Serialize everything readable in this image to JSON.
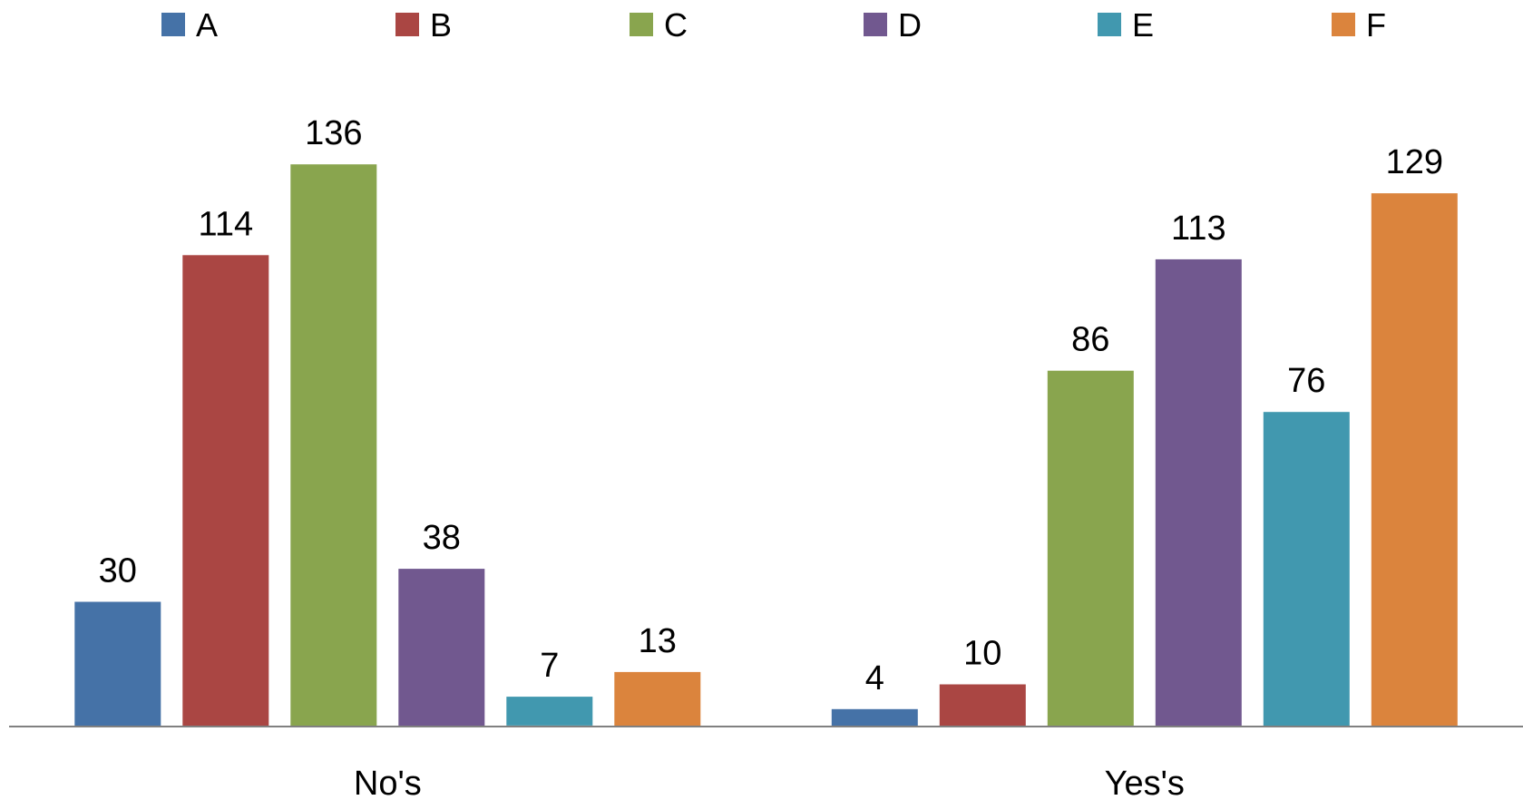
{
  "chart_data": {
    "type": "bar",
    "title": "",
    "xlabel": "",
    "ylabel": "",
    "categories": [
      "No's",
      "Yes's"
    ],
    "ylim": [
      0,
      140
    ],
    "grid": false,
    "legend": "top",
    "data_labels": true,
    "series": [
      {
        "name": "A",
        "color": "#4572A7",
        "values": [
          30,
          4
        ]
      },
      {
        "name": "B",
        "color": "#AA4643",
        "values": [
          114,
          10
        ]
      },
      {
        "name": "C",
        "color": "#89A54E",
        "values": [
          136,
          86
        ]
      },
      {
        "name": "D",
        "color": "#71588F",
        "values": [
          38,
          113
        ]
      },
      {
        "name": "E",
        "color": "#4198AF",
        "values": [
          7,
          76
        ]
      },
      {
        "name": "F",
        "color": "#DB843D",
        "values": [
          13,
          129
        ]
      }
    ]
  }
}
